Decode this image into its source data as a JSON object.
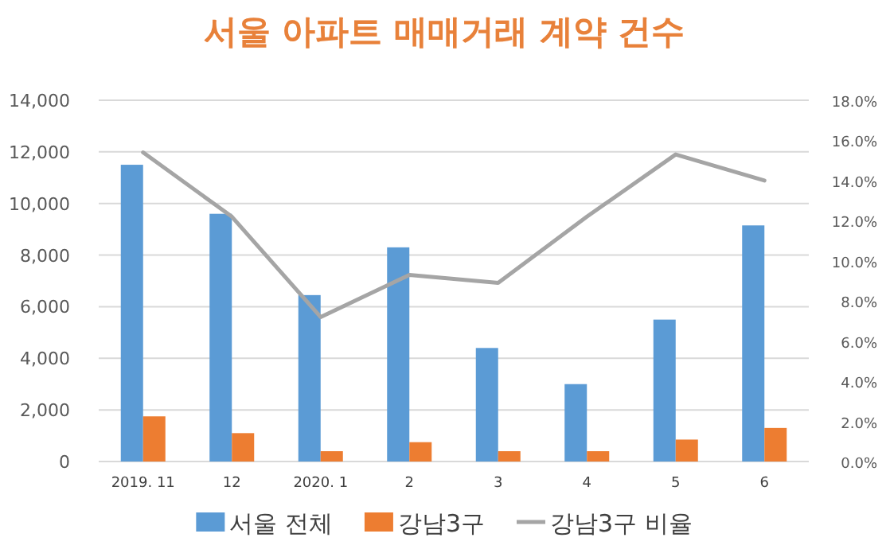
{
  "chart_data": {
    "type": "bar",
    "title": "서울 아파트 매매거래 계약 건수",
    "categories": [
      "2019. 11",
      "12",
      "2020. 1",
      "2",
      "3",
      "4",
      "5",
      "6"
    ],
    "series": [
      {
        "name": "서울 전체",
        "color": "#5b9bd5",
        "values": [
          11500,
          9600,
          6450,
          8300,
          4400,
          3000,
          5500,
          9150
        ]
      },
      {
        "name": "강남3구",
        "color": "#ed7d31",
        "values": [
          1750,
          1100,
          400,
          750,
          400,
          400,
          850,
          1300
        ]
      },
      {
        "name": "강남3구 비율",
        "color": "#a5a5a5",
        "type": "line",
        "axis": "y2",
        "values": [
          15.4,
          12.2,
          7.2,
          9.3,
          8.9,
          12.2,
          15.3,
          14.0
        ]
      }
    ],
    "ylim": [
      0,
      14000
    ],
    "yticks": [
      0,
      {
        "value": 2000,
        "label": "2,000"
      },
      {
        "value": 4000,
        "label": "4,000"
      },
      {
        "value": 6000,
        "label": "6,000"
      },
      {
        "value": 8000,
        "label": "8,000"
      },
      {
        "value": 10000,
        "label": "10,000"
      },
      {
        "value": 12000,
        "label": "12,000"
      },
      {
        "value": 14000,
        "label": "14,000"
      }
    ],
    "y2lim": [
      0,
      18
    ],
    "y2ticks": [
      {
        "value": 0,
        "label": "0.0%"
      },
      {
        "value": 2,
        "label": "2.0%"
      },
      {
        "value": 4,
        "label": "4.0%"
      },
      {
        "value": 6,
        "label": "6.0%"
      },
      {
        "value": 8,
        "label": "8.0%"
      },
      {
        "value": 10,
        "label": "10.0%"
      },
      {
        "value": 12,
        "label": "12.0%"
      },
      {
        "value": 14,
        "label": "14.0%"
      },
      {
        "value": 16,
        "label": "16.0%"
      },
      {
        "value": 18,
        "label": "18.0%"
      }
    ],
    "grid": "y",
    "legend": "bottom"
  }
}
